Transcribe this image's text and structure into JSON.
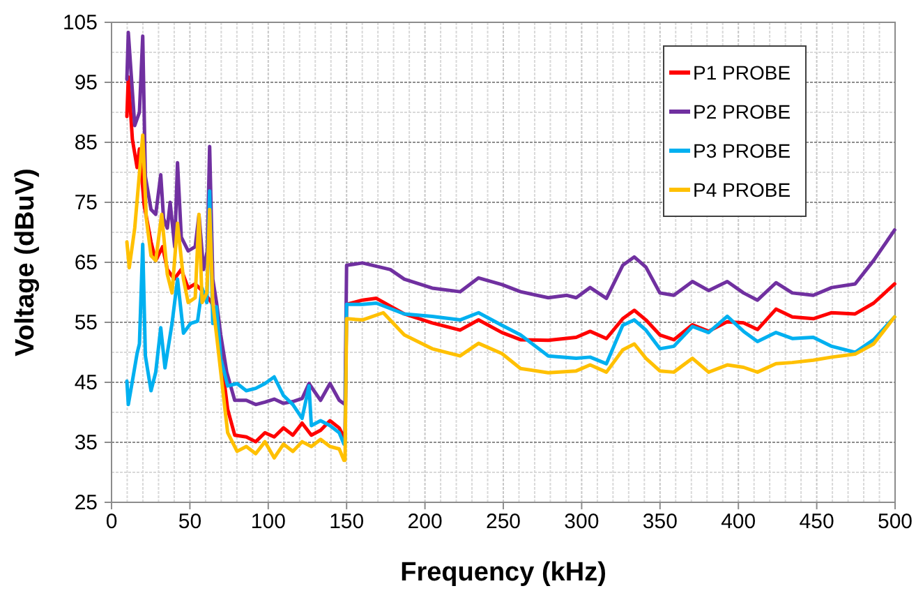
{
  "chart_data": {
    "type": "line",
    "xlabel": "Frequency (kHz)",
    "ylabel": "Voltage (dBuV)",
    "xlim": [
      0,
      500
    ],
    "ylim": [
      25,
      105
    ],
    "xticks": [
      0,
      {
        "value": 10,
        "label": null
      },
      {
        "value": 20,
        "label": null
      },
      {
        "value": 30,
        "label": null
      },
      {
        "value": 40,
        "label": null
      },
      50,
      {
        "value": 60,
        "label": null
      },
      {
        "value": 70,
        "label": null
      },
      {
        "value": 80,
        "label": null
      },
      {
        "value": 90,
        "label": null
      },
      100,
      {
        "value": 110,
        "label": null
      },
      {
        "value": 120,
        "label": null
      },
      {
        "value": 130,
        "label": null
      },
      {
        "value": 140,
        "label": null
      },
      150,
      {
        "value": 160,
        "label": null
      },
      {
        "value": 170,
        "label": null
      },
      {
        "value": 180,
        "label": null
      },
      {
        "value": 190,
        "label": null
      },
      200,
      {
        "value": 210,
        "label": null
      },
      {
        "value": 220,
        "label": null
      },
      {
        "value": 230,
        "label": null
      },
      {
        "value": 240,
        "label": null
      },
      250,
      {
        "value": 260,
        "label": null
      },
      {
        "value": 270,
        "label": null
      },
      {
        "value": 280,
        "label": null
      },
      {
        "value": 290,
        "label": null
      },
      300,
      {
        "value": 310,
        "label": null
      },
      {
        "value": 320,
        "label": null
      },
      {
        "value": 330,
        "label": null
      },
      {
        "value": 340,
        "label": null
      },
      350,
      {
        "value": 360,
        "label": null
      },
      {
        "value": 370,
        "label": null
      },
      {
        "value": 380,
        "label": null
      },
      {
        "value": 390,
        "label": null
      },
      400,
      {
        "value": 410,
        "label": null
      },
      {
        "value": 420,
        "label": null
      },
      {
        "value": 430,
        "label": null
      },
      {
        "value": 440,
        "label": null
      },
      450,
      {
        "value": 460,
        "label": null
      },
      {
        "value": 470,
        "label": null
      },
      {
        "value": 480,
        "label": null
      },
      {
        "value": 490,
        "label": null
      },
      500
    ],
    "yticks": [
      25,
      {
        "value": 30,
        "label": null
      },
      35,
      {
        "value": 40,
        "label": null
      },
      45,
      {
        "value": 50,
        "label": null
      },
      55,
      {
        "value": 60,
        "label": null
      },
      65,
      {
        "value": 70,
        "label": null
      },
      75,
      {
        "value": 80,
        "label": null
      },
      85,
      {
        "value": 90,
        "label": null
      },
      95,
      {
        "value": 100,
        "label": null
      },
      105
    ],
    "grid": true,
    "legend": "top right",
    "marker": "none",
    "line_style": "solid",
    "series": [
      {
        "name": "P1 PROBE",
        "color": "#ff0000",
        "x": [
          9.8,
          10.7,
          13.3,
          16.3,
          17.8,
          20.8,
          25.2,
          28.2,
          32.6,
          35.6,
          40,
          44.5,
          48.9,
          53.4,
          59.3,
          63.8,
          67,
          69.7,
          74.1,
          78.6,
          86,
          92,
          97.9,
          103.8,
          109.7,
          115.7,
          121.6,
          127.5,
          133.4,
          139.4,
          145.3,
          149,
          150,
          160.1,
          169,
          186.8,
          204.6,
          222.4,
          234.2,
          249.1,
          261,
          278.7,
          296.5,
          305.4,
          315.8,
          326.2,
          333.6,
          341,
          349.9,
          358.8,
          370.7,
          381,
          392.9,
          403.3,
          412.2,
          424,
          434.4,
          447.8,
          459.6,
          474.5,
          486.3,
          499.7
        ],
        "values": [
          89.3,
          95.9,
          85.5,
          80.8,
          83.9,
          74.6,
          68.4,
          65.3,
          67.6,
          63.8,
          62.2,
          63.8,
          60.7,
          61.4,
          59.9,
          58.3,
          56,
          49.8,
          40.5,
          36.2,
          35.9,
          35.1,
          36.6,
          35.9,
          37.4,
          36.2,
          38.2,
          36.2,
          37,
          38.6,
          37.4,
          35.5,
          58,
          58.7,
          59,
          56.4,
          54.9,
          53.7,
          55.4,
          53.3,
          52.1,
          52,
          52.5,
          53.5,
          52.3,
          55.6,
          57,
          55.4,
          52.9,
          52.1,
          54.6,
          53.5,
          55.1,
          54.9,
          53.8,
          57.2,
          55.9,
          55.6,
          56.6,
          56.4,
          58.2,
          61.4
        ]
      },
      {
        "name": "P2 PROBE",
        "color": "#7030a0",
        "x": [
          9.8,
          10.7,
          14.8,
          17.8,
          19.9,
          21.6,
          25.2,
          28.2,
          31.4,
          33.2,
          35.6,
          37.4,
          40.3,
          42.1,
          44.5,
          48.9,
          53.4,
          55.8,
          58.7,
          61.1,
          62.6,
          64.6,
          67,
          69.7,
          73.5,
          78.6,
          86,
          92,
          97.9,
          103.8,
          109.7,
          115.7,
          121.6,
          126,
          133.4,
          139.4,
          145.3,
          149,
          150,
          160.1,
          177.9,
          186.8,
          204.6,
          222.4,
          234.2,
          249.1,
          261,
          278.7,
          290.6,
          296.5,
          305.4,
          315.8,
          326.2,
          333.6,
          341,
          349.9,
          358.8,
          370.7,
          381,
          392.9,
          403.3,
          412.2,
          424,
          434.4,
          447.8,
          459.6,
          474.5,
          486.3,
          499.7
        ],
        "values": [
          95.5,
          103.3,
          87.8,
          90,
          102.7,
          79.3,
          73.8,
          73,
          79.6,
          72.3,
          70.7,
          75,
          67.6,
          81.6,
          69.2,
          66.9,
          67.6,
          72.9,
          63.8,
          66.9,
          84.3,
          62.2,
          58.3,
          52.9,
          46.7,
          42,
          42,
          41.3,
          41.7,
          42.2,
          41.5,
          41.8,
          42.3,
          44.8,
          42,
          44.8,
          42,
          41.3,
          64.5,
          64.9,
          63.8,
          62.2,
          60.7,
          60.1,
          62.4,
          61.3,
          60.1,
          59.1,
          59.5,
          59.1,
          60.8,
          59,
          64.5,
          65.9,
          64.2,
          59.9,
          59.5,
          61.8,
          60.3,
          61.8,
          59.9,
          58.7,
          61.6,
          59.9,
          59.5,
          60.8,
          61.4,
          65.3,
          70.4
        ]
      },
      {
        "name": "P3 PROBE",
        "color": "#00b0f0",
        "x": [
          9.8,
          10.7,
          13.3,
          16.3,
          17.8,
          19.9,
          21.6,
          25.2,
          28.2,
          31.4,
          34.1,
          38.6,
          42.1,
          45.9,
          50.4,
          54.9,
          57.8,
          60.8,
          62.6,
          64.6,
          67,
          69.7,
          74.1,
          80.1,
          86,
          92,
          97.9,
          103.8,
          109.7,
          115.7,
          121.6,
          126,
          127.5,
          133.4,
          139.4,
          145.3,
          148.3,
          149,
          150,
          160.1,
          169,
          186.8,
          204.6,
          222.4,
          234.2,
          249.1,
          261,
          278.7,
          296.5,
          305.4,
          315.8,
          326.2,
          333.6,
          341,
          349.9,
          358.8,
          370.7,
          381,
          392.9,
          403.3,
          412.2,
          424,
          434.4,
          447.8,
          459.6,
          474.5,
          486.3,
          499.7
        ],
        "values": [
          45.2,
          41.3,
          45.2,
          49.8,
          51.4,
          68,
          49.4,
          43.6,
          46.7,
          54.1,
          47.4,
          54.8,
          62.2,
          53.2,
          54.8,
          55.2,
          60.7,
          58.3,
          76.9,
          54.8,
          57.6,
          49,
          44.4,
          44.8,
          43.6,
          44,
          44.8,
          45.9,
          42.8,
          41.3,
          39,
          44.4,
          37.8,
          38.6,
          37.8,
          36.6,
          34.7,
          34.7,
          58,
          58,
          58.2,
          56.4,
          56,
          55.4,
          56.6,
          54.5,
          52.9,
          49.4,
          49,
          49.2,
          48.1,
          54.5,
          55.4,
          53.7,
          50.6,
          51,
          54.3,
          53.3,
          56,
          53.5,
          51.8,
          53.3,
          52.3,
          52.5,
          51,
          50,
          52.1,
          55.9
        ]
      },
      {
        "name": "P4 PROBE",
        "color": "#ffc000",
        "x": [
          9.8,
          11.3,
          14.8,
          19.9,
          22.2,
          25.2,
          28.2,
          32,
          35.6,
          38.6,
          42.1,
          45.9,
          48.9,
          53.4,
          55.8,
          57.8,
          60.8,
          62.6,
          64.6,
          67,
          69.7,
          74.1,
          80.1,
          86,
          92,
          97.9,
          103.8,
          109.7,
          115.7,
          121.6,
          127.5,
          133.4,
          139.4,
          145.3,
          148.3,
          149,
          150,
          160.1,
          173.4,
          186.8,
          204.6,
          222.4,
          234.2,
          249.1,
          261,
          278.7,
          296.5,
          305.4,
          315.8,
          326.2,
          333.6,
          341,
          349.9,
          358.8,
          370.7,
          381,
          392.9,
          403.3,
          412.2,
          424,
          434.4,
          447.8,
          459.6,
          474.5,
          486.3,
          499.7
        ],
        "values": [
          68.4,
          64.1,
          70.7,
          86.2,
          72.3,
          66.1,
          65.3,
          73,
          63,
          59.9,
          71.5,
          62.2,
          58.3,
          59.1,
          73,
          58.3,
          59.9,
          73.8,
          58.3,
          52.9,
          46.7,
          36.6,
          33.5,
          34.3,
          33.1,
          35.1,
          32.4,
          34.7,
          33.5,
          35.1,
          34.3,
          35.5,
          34.3,
          33.9,
          32,
          32,
          55.6,
          55.4,
          56.6,
          52.9,
          50.6,
          49.4,
          51.5,
          49.8,
          47.3,
          46.6,
          46.9,
          47.9,
          46.7,
          50.4,
          51.4,
          49,
          46.9,
          46.7,
          49,
          46.7,
          47.9,
          47.5,
          46.7,
          48.1,
          48.3,
          48.7,
          49.2,
          49.7,
          51.4,
          55.9
        ]
      }
    ]
  }
}
